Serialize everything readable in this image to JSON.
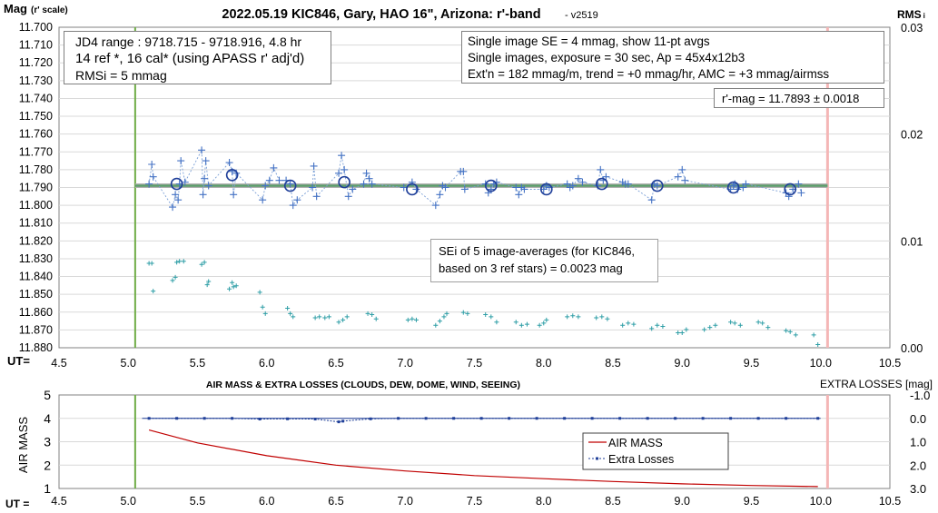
{
  "chart_data": [
    {
      "type": "scatter",
      "title": "2022.05.19 KIC846, Gary, HAO 16\", Arizona: r'-band",
      "version": "- v2519",
      "ylabel_main": "Mag",
      "ylabel_sub": "(r' scale)",
      "y2label": "RMS",
      "y2label_sub": "i",
      "x_label": "UT=",
      "xlim": [
        4.5,
        10.5
      ],
      "xticks": [
        "4.5",
        "5.0",
        "5.5",
        "6.0",
        "6.5",
        "7.0",
        "7.5",
        "8.0",
        "8.5",
        "9.0",
        "9.5",
        "10.0",
        "10.5"
      ],
      "ylim": [
        11.7,
        11.88
      ],
      "yticks": [
        "11.700",
        "11.710",
        "11.720",
        "11.730",
        "11.740",
        "11.750",
        "11.760",
        "11.770",
        "11.780",
        "11.790",
        "11.800",
        "11.810",
        "11.820",
        "11.830",
        "11.840",
        "11.850",
        "11.860",
        "11.870",
        "11.880"
      ],
      "y2lim": [
        0,
        0.03
      ],
      "y2ticks": [
        "0.03",
        "0.02",
        "0.01",
        "0.00"
      ],
      "vlines": {
        "start": 5.05,
        "end": 10.05,
        "start_color": "#70ad47",
        "end_color": "#f4b6b6"
      },
      "fit_line": {
        "x": [
          5.05,
          10.05
        ],
        "y": [
          11.789,
          11.789
        ],
        "color": "#5b9e6a"
      },
      "info_left": [
        "JD4 range : 9718.715 - 9718.916,  4.8  hr",
        "14 ref *, 16 cal* (using APASS r' adj'd)",
        "RMSi = 5 mmag"
      ],
      "info_right": [
        "Single image SE = 4 mmag, show  11-pt avgs",
        "Single images, exposure = 30 sec, Ap = 45x4x12b3",
        "Ext'n = 182 mmag/m, trend = +0  mmag/hr, AMC = +3 mmag/airmss"
      ],
      "rmag": "r'-mag = 11.7893 ± 0.0018",
      "sei": [
        "SEi of 5 image-averages (for KIC846,",
        "based on 3 ref stars) = 0.0023 mag"
      ],
      "series": [
        {
          "kind": "singles",
          "color": "#4472c4",
          "x": [
            5.15,
            5.17,
            5.18,
            5.32,
            5.34,
            5.36,
            5.37,
            5.38,
            5.41,
            5.53,
            5.54,
            5.55,
            5.56,
            5.58,
            5.73,
            5.75,
            5.76,
            5.78,
            5.97,
            5.99,
            6.02,
            6.05,
            6.09,
            6.14,
            6.17,
            6.19,
            6.22,
            6.33,
            6.34,
            6.36,
            6.52,
            6.54,
            6.56,
            6.59,
            6.62,
            6.7,
            6.72,
            6.74,
            6.76,
            6.99,
            7.05,
            7.08,
            7.22,
            7.25,
            7.27,
            7.29,
            7.4,
            7.42,
            7.43,
            7.58,
            7.6,
            7.62,
            7.64,
            7.66,
            7.8,
            7.82,
            7.84,
            7.86,
            8.0,
            8.02,
            8.04,
            8.17,
            8.19,
            8.21,
            8.25,
            8.28,
            8.39,
            8.41,
            8.43,
            8.45,
            8.57,
            8.59,
            8.61,
            8.78,
            8.8,
            8.82,
            8.97,
            9.0,
            9.02,
            9.35,
            9.37,
            9.38,
            9.4,
            9.44,
            9.46,
            9.75,
            9.77,
            9.8,
            9.84,
            9.86
          ],
          "y": [
            11.788,
            11.777,
            11.784,
            11.801,
            11.794,
            11.797,
            11.788,
            11.775,
            11.787,
            11.769,
            11.794,
            11.785,
            11.775,
            11.789,
            11.776,
            11.781,
            11.794,
            11.782,
            11.797,
            11.789,
            11.786,
            11.779,
            11.786,
            11.786,
            11.788,
            11.8,
            11.797,
            11.79,
            11.778,
            11.795,
            11.782,
            11.772,
            11.78,
            11.795,
            11.791,
            11.788,
            11.782,
            11.785,
            11.788,
            11.79,
            11.787,
            11.791,
            11.8,
            11.794,
            11.789,
            11.79,
            11.781,
            11.781,
            11.791,
            11.788,
            11.793,
            11.791,
            11.788,
            11.787,
            11.79,
            11.794,
            11.79,
            11.791,
            11.791,
            11.789,
            11.79,
            11.788,
            11.79,
            11.789,
            11.785,
            11.787,
            11.789,
            11.78,
            11.786,
            11.784,
            11.787,
            11.788,
            11.788,
            11.797,
            11.788,
            11.789,
            11.784,
            11.78,
            11.786,
            11.791,
            11.789,
            11.788,
            11.791,
            11.79,
            11.788,
            11.793,
            11.795,
            11.791,
            11.788,
            11.793
          ]
        },
        {
          "kind": "averages",
          "color": "#1f3f99",
          "x": [
            5.35,
            5.75,
            6.17,
            6.56,
            7.05,
            7.62,
            8.02,
            8.42,
            8.82,
            9.37,
            9.78
          ],
          "y": [
            11.788,
            11.783,
            11.789,
            11.787,
            11.791,
            11.789,
            11.791,
            11.788,
            11.789,
            11.79,
            11.791
          ]
        },
        {
          "kind": "rms",
          "color": "#2e9ea6",
          "x": [
            5.15,
            5.17,
            5.18,
            5.32,
            5.34,
            5.35,
            5.37,
            5.4,
            5.53,
            5.55,
            5.57,
            5.58,
            5.73,
            5.75,
            5.76,
            5.78,
            5.95,
            5.97,
            5.99,
            6.15,
            6.17,
            6.19,
            6.35,
            6.38,
            6.42,
            6.45,
            6.52,
            6.55,
            6.58,
            6.73,
            6.76,
            6.79,
            7.02,
            7.05,
            7.08,
            7.22,
            7.25,
            7.28,
            7.3,
            7.42,
            7.45,
            7.58,
            7.62,
            7.66,
            7.8,
            7.84,
            7.88,
            7.97,
            8.0,
            8.02,
            8.17,
            8.21,
            8.25,
            8.38,
            8.42,
            8.46,
            8.57,
            8.61,
            8.65,
            8.78,
            8.82,
            8.86,
            8.97,
            9.0,
            9.03,
            9.16,
            9.2,
            9.24,
            9.35,
            9.38,
            9.42,
            9.55,
            9.58,
            9.62,
            9.75,
            9.78,
            9.82,
            9.95,
            9.98
          ],
          "y": [
            0.0079,
            0.0079,
            0.0053,
            0.0063,
            0.0066,
            0.008,
            0.0081,
            0.0081,
            0.0078,
            0.008,
            0.0059,
            0.0062,
            0.0055,
            0.0061,
            0.0057,
            0.0058,
            0.0052,
            0.0038,
            0.0032,
            0.0037,
            0.0032,
            0.0029,
            0.0028,
            0.0029,
            0.0028,
            0.0029,
            0.0024,
            0.0026,
            0.0029,
            0.0032,
            0.0031,
            0.0027,
            0.0026,
            0.0027,
            0.0026,
            0.0021,
            0.0025,
            0.0029,
            0.0032,
            0.0033,
            0.0032,
            0.0031,
            0.0029,
            0.0024,
            0.0024,
            0.0021,
            0.0022,
            0.0021,
            0.0023,
            0.0026,
            0.0029,
            0.003,
            0.0029,
            0.0028,
            0.0029,
            0.0027,
            0.0021,
            0.0023,
            0.0022,
            0.0018,
            0.0021,
            0.002,
            0.0014,
            0.0014,
            0.0017,
            0.0017,
            0.0019,
            0.0021,
            0.0024,
            0.0023,
            0.0021,
            0.0024,
            0.0023,
            0.0019,
            0.0016,
            0.0015,
            0.0012,
            0.0012,
            0.0003
          ]
        }
      ]
    },
    {
      "type": "line",
      "title": "AIR MASS & EXTRA LOSSES (CLOUDS, DEW, DOME, WIND, SEEING)",
      "ylabel": "AIR MASS",
      "y2label": "EXTRA LOSSES [mag]",
      "x_label": "UT =",
      "xlim": [
        4.5,
        10.5
      ],
      "xticks": [
        "4.5",
        "5.0",
        "5.5",
        "6.0",
        "6.5",
        "7.0",
        "7.5",
        "8.0",
        "8.5",
        "9.0",
        "9.5",
        "10.0",
        "10.5"
      ],
      "ylim": [
        1,
        5
      ],
      "yticks": [
        "5",
        "4",
        "3",
        "2",
        "1"
      ],
      "y2lim": [
        -1,
        3
      ],
      "y2ticks": [
        "-1.0",
        "0.0",
        "1.0",
        "2.0",
        "3.0"
      ],
      "legend": [
        "AIR MASS",
        "Extra Losses"
      ],
      "series": [
        {
          "name": "AIR MASS",
          "color": "#c00000",
          "x": [
            5.15,
            5.5,
            6.0,
            6.5,
            7.0,
            7.5,
            8.0,
            8.5,
            9.0,
            9.5,
            9.98
          ],
          "y": [
            3.5,
            2.95,
            2.4,
            2.0,
            1.75,
            1.55,
            1.42,
            1.3,
            1.2,
            1.13,
            1.08
          ]
        },
        {
          "name": "Extra Losses",
          "color": "#1f3f99",
          "x": [
            5.15,
            5.35,
            5.55,
            5.75,
            5.95,
            6.15,
            6.35,
            6.52,
            6.55,
            6.75,
            6.95,
            7.15,
            7.35,
            7.55,
            7.75,
            7.95,
            8.15,
            8.35,
            8.55,
            8.75,
            8.95,
            9.15,
            9.35,
            9.55,
            9.75,
            9.98
          ],
          "y": [
            0.0,
            0.0,
            0.0,
            0.0,
            0.03,
            0.02,
            0.03,
            0.15,
            0.12,
            0.02,
            0.0,
            0.0,
            0.0,
            0.0,
            0.0,
            0.0,
            0.0,
            0.0,
            0.0,
            0.0,
            0.0,
            0.0,
            0.0,
            0.0,
            0.0,
            0.0
          ]
        }
      ]
    }
  ]
}
